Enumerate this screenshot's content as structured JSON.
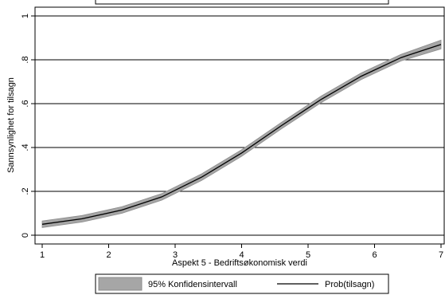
{
  "chart_data": {
    "type": "line",
    "xlabel": "Aspekt 5 - Bedriftsøkonomisk verdi",
    "ylabel": "Sannsynlighet for tilsagn",
    "xlim": [
      1,
      7
    ],
    "ylim": [
      0,
      1
    ],
    "x_ticks": [
      1,
      2,
      3,
      4,
      5,
      6,
      7
    ],
    "x_tick_labels": [
      "1",
      "2",
      "3",
      "4",
      "5",
      "6",
      "7"
    ],
    "y_ticks": [
      0,
      0.2,
      0.4,
      0.6,
      0.8,
      1
    ],
    "y_tick_labels": [
      "0",
      ".2",
      ".4",
      ".6",
      ".8",
      "1"
    ],
    "grid": true,
    "legend_position": "bottom",
    "series": [
      {
        "name": "Prob(tilsagn)",
        "kind": "line",
        "color": "#000000",
        "x": [
          1,
          1.6,
          2.2,
          2.8,
          3.4,
          4,
          4.6,
          5.2,
          5.8,
          6.4,
          7
        ],
        "values": [
          0.05,
          0.075,
          0.115,
          0.175,
          0.265,
          0.375,
          0.5,
          0.62,
          0.725,
          0.81,
          0.87
        ]
      },
      {
        "name": "95% Konfidensintervall",
        "kind": "band",
        "color": "#a6a6a6",
        "x": [
          1,
          1.6,
          2.2,
          2.8,
          3.4,
          4,
          4.6,
          5.2,
          5.8,
          6.4,
          7
        ],
        "lower": [
          0.035,
          0.06,
          0.1,
          0.16,
          0.25,
          0.36,
          0.485,
          0.605,
          0.71,
          0.795,
          0.85
        ],
        "upper": [
          0.065,
          0.09,
          0.13,
          0.19,
          0.28,
          0.39,
          0.515,
          0.635,
          0.74,
          0.825,
          0.89
        ]
      }
    ]
  }
}
